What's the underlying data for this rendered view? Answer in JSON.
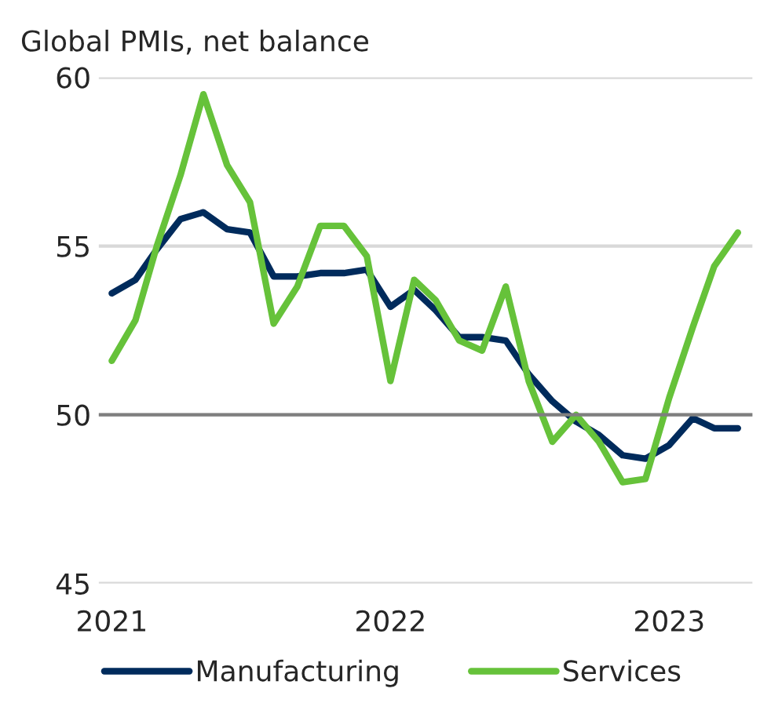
{
  "chart_data": {
    "type": "line",
    "title": "Global PMIs, net balance",
    "x": [
      "2021-01",
      "2021-02",
      "2021-03",
      "2021-04",
      "2021-05",
      "2021-06",
      "2021-07",
      "2021-08",
      "2021-09",
      "2021-10",
      "2021-11",
      "2021-12",
      "2022-01",
      "2022-02",
      "2022-03",
      "2022-04",
      "2022-05",
      "2022-06",
      "2022-07",
      "2022-08",
      "2022-09",
      "2022-10",
      "2022-11",
      "2022-12",
      "2023-01",
      "2023-02",
      "2023-03",
      "2023-04"
    ],
    "series": [
      {
        "name": "Manufacturing",
        "color": "#002b5c",
        "values": [
          53.6,
          54.0,
          54.9,
          55.8,
          56.0,
          55.5,
          55.4,
          54.1,
          54.1,
          54.2,
          54.2,
          54.3,
          53.2,
          53.7,
          53.1,
          52.3,
          52.3,
          52.2,
          51.2,
          50.4,
          49.8,
          49.4,
          48.8,
          48.7,
          49.1,
          49.9,
          49.6,
          49.6
        ]
      },
      {
        "name": "Services",
        "color": "#66c23a",
        "values": [
          51.6,
          52.8,
          55.0,
          57.1,
          59.5,
          57.4,
          56.3,
          52.7,
          53.8,
          55.6,
          55.6,
          54.7,
          51.0,
          54.0,
          53.4,
          52.2,
          51.9,
          53.8,
          51.0,
          49.2,
          50.0,
          49.2,
          48.0,
          48.1,
          50.5,
          52.6,
          54.4,
          55.4
        ]
      }
    ],
    "ylim": [
      45,
      60
    ],
    "yticks": [
      45,
      50,
      55,
      60
    ],
    "xlim": [
      "2020-12-15",
      "2023-04-20"
    ],
    "xticks": [
      {
        "value": "2021-01",
        "label": "2021"
      },
      {
        "value": "2022-01",
        "label": "2022"
      },
      {
        "value": "2023-01",
        "label": "2023"
      }
    ],
    "ref_lines": [
      {
        "axis": "y",
        "value": 50,
        "color": "#7f7f7f"
      }
    ],
    "grid": "y",
    "legend": "bottom",
    "marker": "none",
    "line_style": "solid"
  }
}
